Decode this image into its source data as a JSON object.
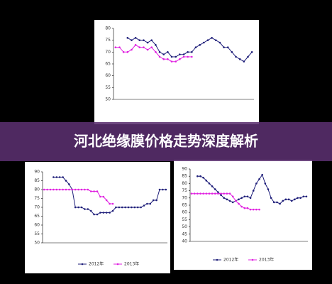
{
  "header": {
    "title": "河北绝缘膜价格走势深度解析"
  },
  "chart_data": [
    {
      "type": "line",
      "categories": [
        null,
        null,
        null,
        null,
        null,
        null,
        null,
        null,
        null,
        null,
        null,
        null,
        null,
        null,
        null,
        null,
        null,
        null,
        null,
        null,
        null,
        null,
        null,
        null,
        null,
        null,
        null,
        null,
        null,
        null,
        null,
        null,
        null,
        null,
        null
      ],
      "ylim": [
        50,
        80
      ],
      "yticks": [
        50,
        55,
        60,
        65,
        70,
        75,
        80
      ],
      "series": [
        {
          "color": "#1f1f7a",
          "values": [
            null,
            null,
            null,
            76,
            75,
            76,
            75,
            75,
            74,
            75,
            73,
            70,
            69,
            70,
            68,
            68,
            69,
            69,
            70,
            70,
            72,
            73,
            74,
            75,
            76,
            75,
            74,
            72,
            72,
            70,
            68,
            67,
            66,
            68,
            70
          ]
        },
        {
          "color": "#e020e0",
          "values": [
            72,
            72,
            70,
            70,
            71,
            73,
            72,
            72,
            71,
            72,
            70,
            68,
            67,
            67,
            66,
            66,
            67,
            68,
            68,
            68,
            null,
            null,
            null,
            null,
            null,
            null,
            null,
            null,
            null,
            null,
            null,
            null,
            null,
            null,
            null
          ]
        }
      ]
    },
    {
      "type": "line",
      "categories": [
        null,
        null,
        null,
        null,
        null,
        null,
        null,
        null,
        null,
        null,
        null,
        null,
        null,
        null,
        null,
        null,
        null,
        null,
        null,
        null,
        null,
        null,
        null,
        null,
        null,
        null,
        null,
        null,
        null,
        null,
        null,
        null,
        null,
        null,
        null,
        null,
        null,
        null,
        null,
        null
      ],
      "ylim": [
        50,
        90
      ],
      "yticks": [
        50,
        55,
        60,
        65,
        70,
        75,
        80,
        85,
        90
      ],
      "series": [
        {
          "name": "2012年",
          "color": "#1f1f7a",
          "values": [
            null,
            null,
            null,
            87,
            87,
            87,
            87,
            85,
            83,
            80,
            70,
            70,
            70,
            69,
            69,
            68,
            66,
            66,
            67,
            67,
            67,
            67,
            68,
            70,
            70,
            70,
            70,
            70,
            70,
            70,
            70,
            70,
            71,
            72,
            72,
            74,
            74,
            80,
            80,
            80
          ]
        },
        {
          "name": "2013年",
          "color": "#e020e0",
          "values": [
            80,
            80,
            80,
            80,
            80,
            80,
            80,
            80,
            80,
            80,
            80,
            80,
            80,
            80,
            80,
            79,
            79,
            79,
            76,
            76,
            74,
            72,
            72,
            null,
            null,
            null,
            null,
            null,
            null,
            null,
            null,
            null,
            null,
            null,
            null,
            null,
            null,
            null,
            null,
            null
          ]
        }
      ]
    },
    {
      "type": "line",
      "categories": [
        null,
        null,
        null,
        null,
        null,
        null,
        null,
        null,
        null,
        null,
        null,
        null,
        null,
        null,
        null,
        null,
        null,
        null,
        null,
        null,
        null,
        null,
        null,
        null,
        null,
        null,
        null,
        null,
        null,
        null,
        null,
        null,
        null,
        null,
        null,
        null,
        null,
        null,
        null,
        null
      ],
      "ylim": [
        40,
        90
      ],
      "yticks": [
        40,
        45,
        50,
        55,
        60,
        65,
        70,
        75,
        80,
        85,
        90
      ],
      "series": [
        {
          "name": "2012年",
          "color": "#1f1f7a",
          "values": [
            null,
            null,
            85,
            85,
            84,
            82,
            80,
            78,
            76,
            74,
            72,
            70,
            69,
            68,
            67,
            68,
            69,
            70,
            71,
            71,
            70,
            75,
            80,
            83,
            86,
            80,
            76,
            70,
            67,
            67,
            66,
            68,
            69,
            69,
            68,
            69,
            70,
            70,
            71,
            71
          ]
        },
        {
          "name": "2013年",
          "color": "#e020e0",
          "values": [
            73,
            73,
            73,
            73,
            73,
            73,
            73,
            73,
            73,
            73,
            73,
            73,
            73,
            73,
            71,
            68,
            66,
            64,
            63,
            63,
            62,
            62,
            62,
            62,
            null,
            null,
            null,
            null,
            null,
            null,
            null,
            null,
            null,
            null,
            null,
            null,
            null,
            null,
            null,
            null
          ]
        }
      ]
    }
  ]
}
